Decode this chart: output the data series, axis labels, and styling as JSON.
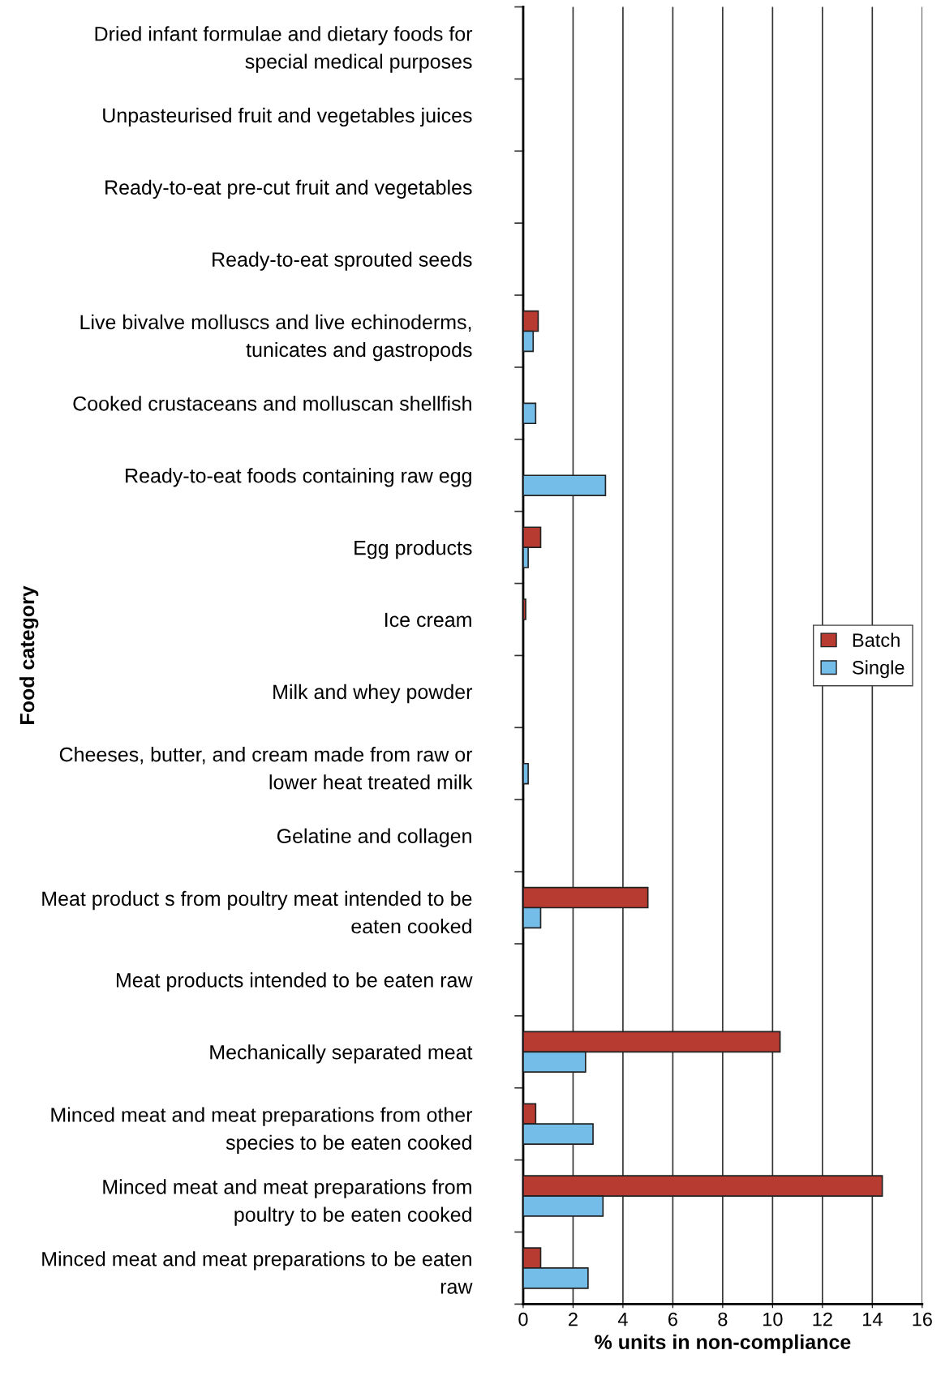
{
  "chart_data": {
    "type": "bar",
    "orientation": "horizontal",
    "xlabel": "% units in non-compliance",
    "ylabel": "Food category",
    "categories": [
      "Dried infant formulae and dietary foods for\nspecial medical purposes",
      "Unpasteurised fruit and vegetables juices",
      "Ready-to-eat pre-cut fruit and vegetables",
      "Ready-to-eat sprouted seeds",
      "Live bivalve molluscs and live echinoderms,\ntunicates and gastropods",
      "Cooked crustaceans and molluscan shellfish",
      "Ready-to-eat foods containing raw egg",
      "Egg products",
      "Ice cream",
      "Milk and whey powder",
      "Cheeses, butter, and cream made from raw or\nlower heat treated milk",
      "Gelatine and collagen",
      "Meat product s from poultry meat intended to be\neaten cooked",
      "Meat products intended to be eaten raw",
      "Mechanically separated meat",
      "Minced meat and meat preparations from other\nspecies to be eaten cooked",
      "Minced meat and meat preparations from\npoultry to be eaten cooked",
      "Minced meat and meat preparations to be eaten\nraw"
    ],
    "series": [
      {
        "name": "Batch",
        "color": "#b83b32",
        "values": [
          null,
          null,
          null,
          null,
          0.6,
          null,
          null,
          0.7,
          0.1,
          null,
          null,
          null,
          5.0,
          null,
          10.3,
          0.5,
          14.4,
          0.7
        ]
      },
      {
        "name": "Single",
        "color": "#75bde9",
        "values": [
          null,
          null,
          null,
          null,
          0.4,
          0.5,
          3.3,
          0.2,
          null,
          null,
          0.2,
          null,
          0.7,
          null,
          2.5,
          2.8,
          3.2,
          2.6
        ]
      }
    ],
    "xlim": [
      0,
      16
    ],
    "xticks": [
      0,
      2,
      4,
      6,
      8,
      10,
      12,
      14,
      16
    ],
    "grid": "x",
    "legend": "right"
  }
}
